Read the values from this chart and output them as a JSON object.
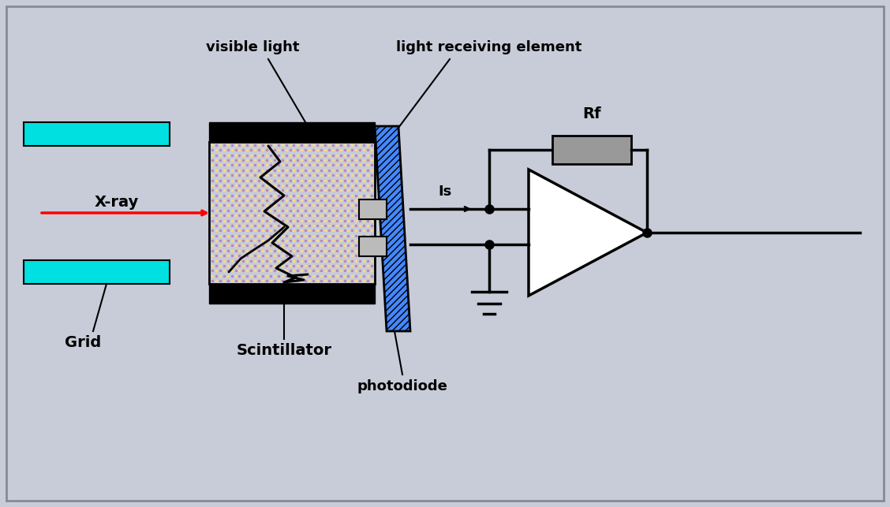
{
  "bg_color": "#c8ccd8",
  "cyan_color": "#00e0e0",
  "blue_color": "#4488ff",
  "black": "#000000",
  "white": "#ffffff",
  "gray": "#999999",
  "red": "#ff0000",
  "yellow_dot": "#f0e080",
  "purple_dot": "#c080c0",
  "grid_label": "Grid",
  "scintillator_label": "Scintillator",
  "photodiode_label": "photodiode",
  "visible_light_label": "visible light",
  "light_receiving_label": "light receiving element",
  "xray_label": "X-ray",
  "Is_label": "Is",
  "Rf_label": "Rf",
  "figw": 11.28,
  "figh": 6.43,
  "dpi": 100
}
